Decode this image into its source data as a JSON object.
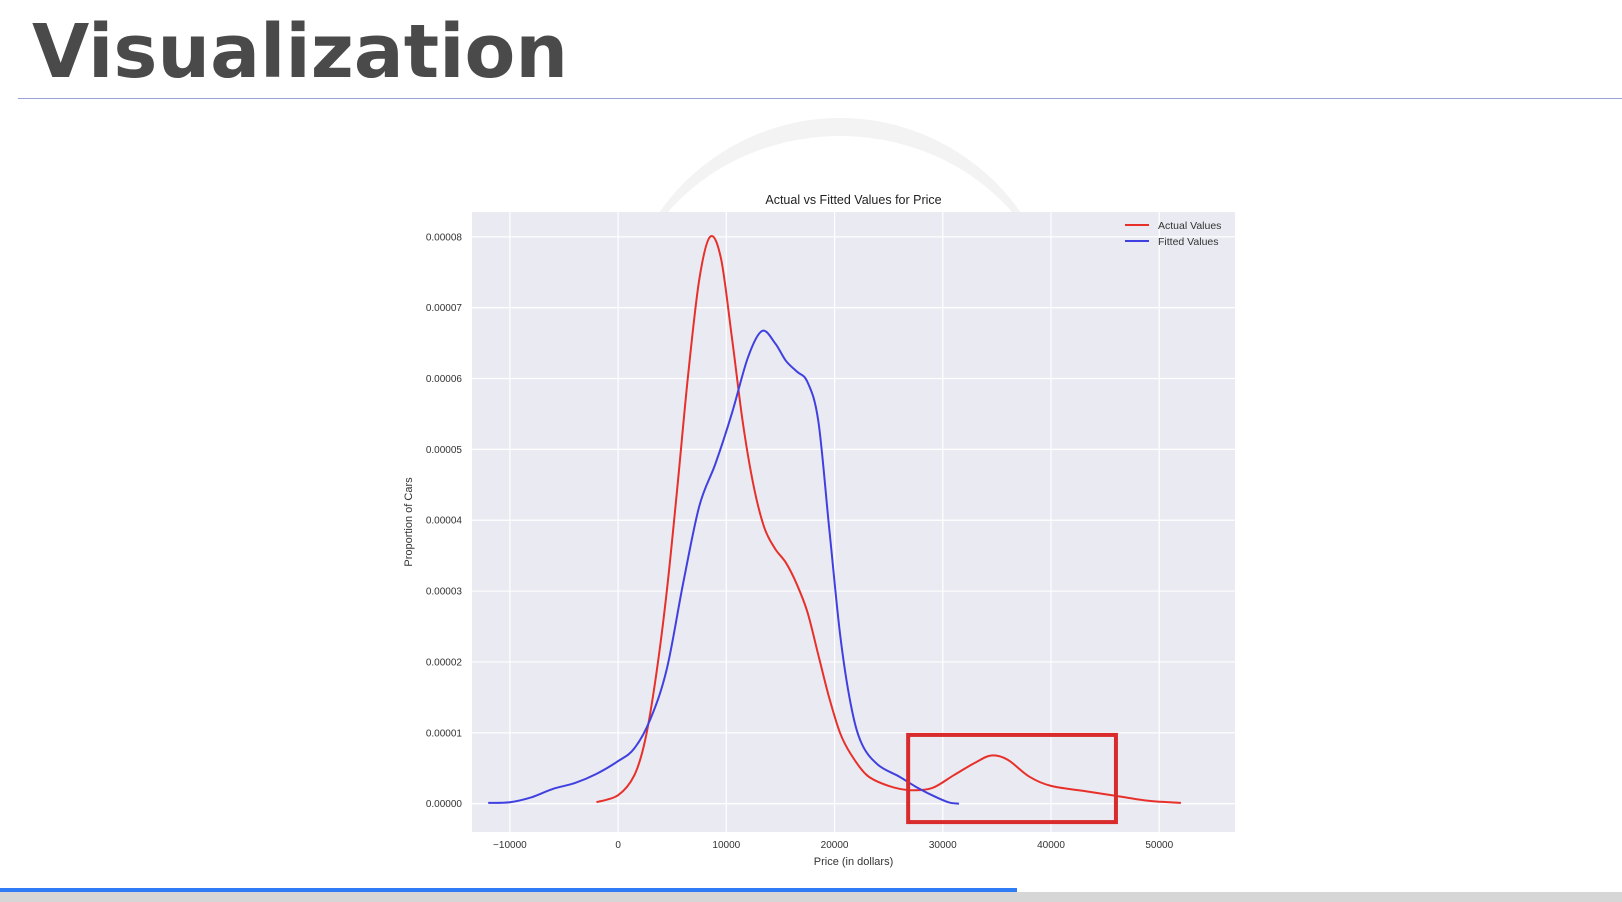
{
  "slide": {
    "title": "Visualization"
  },
  "progress": {
    "fraction": 0.627
  },
  "colors": {
    "actual": "#e8302a",
    "fitted": "#4040e0",
    "highlight": "#d92b2b",
    "plot_bg": "#eaeaf2"
  },
  "chart_data": {
    "type": "line",
    "title": "Actual vs Fitted Values for Price",
    "xlabel": "Price (in dollars)",
    "ylabel": "Proportion of Cars",
    "xlim": [
      -13500,
      57000
    ],
    "ylim": [
      -4e-06,
      8.35e-05
    ],
    "x_ticks": [
      {
        "value": -10000,
        "label": "−10000"
      },
      {
        "value": 0,
        "label": "0"
      },
      {
        "value": 10000,
        "label": "10000"
      },
      {
        "value": 20000,
        "label": "20000"
      },
      {
        "value": 30000,
        "label": "30000"
      },
      {
        "value": 40000,
        "label": "40000"
      },
      {
        "value": 50000,
        "label": "50000"
      }
    ],
    "y_ticks": [
      {
        "value": 0.0,
        "label": "0.00000"
      },
      {
        "value": 1e-05,
        "label": "0.00001"
      },
      {
        "value": 2e-05,
        "label": "0.00002"
      },
      {
        "value": 3e-05,
        "label": "0.00003"
      },
      {
        "value": 4e-05,
        "label": "0.00004"
      },
      {
        "value": 5e-05,
        "label": "0.00005"
      },
      {
        "value": 6e-05,
        "label": "0.00006"
      },
      {
        "value": 7e-05,
        "label": "0.00007"
      },
      {
        "value": 8e-05,
        "label": "0.00008"
      }
    ],
    "grid": true,
    "legend_position": "top-right",
    "series": [
      {
        "name": "Actual Values",
        "color": "#e8302a",
        "points": [
          [
            -2000,
            2e-07
          ],
          [
            0,
            1.2e-06
          ],
          [
            1500,
            4e-06
          ],
          [
            2500,
            9e-06
          ],
          [
            3500,
            1.8e-05
          ],
          [
            4500,
            3e-05
          ],
          [
            5500,
            4.5e-05
          ],
          [
            6500,
            6.1e-05
          ],
          [
            7500,
            7.4e-05
          ],
          [
            8500,
            8e-05
          ],
          [
            9500,
            7.7e-05
          ],
          [
            10500,
            6.6e-05
          ],
          [
            11500,
            5.4e-05
          ],
          [
            12500,
            4.5e-05
          ],
          [
            13500,
            3.9e-05
          ],
          [
            14500,
            3.6e-05
          ],
          [
            15500,
            3.4e-05
          ],
          [
            16500,
            3.1e-05
          ],
          [
            17500,
            2.7e-05
          ],
          [
            18500,
            2.1e-05
          ],
          [
            19500,
            1.5e-05
          ],
          [
            20500,
            1e-05
          ],
          [
            21500,
            7e-06
          ],
          [
            23000,
            4e-06
          ],
          [
            25000,
            2.5e-06
          ],
          [
            27000,
            1.9e-06
          ],
          [
            29000,
            2.2e-06
          ],
          [
            31000,
            4e-06
          ],
          [
            33000,
            5.8e-06
          ],
          [
            34500,
            6.8e-06
          ],
          [
            36000,
            6.2e-06
          ],
          [
            38000,
            3.8e-06
          ],
          [
            40000,
            2.5e-06
          ],
          [
            43000,
            1.8e-06
          ],
          [
            46000,
            1.1e-06
          ],
          [
            49000,
            4e-07
          ],
          [
            52000,
            1e-07
          ]
        ]
      },
      {
        "name": "Fitted Values",
        "color": "#4040e0",
        "points": [
          [
            -12000,
            1e-07
          ],
          [
            -10000,
            2e-07
          ],
          [
            -8000,
            9e-07
          ],
          [
            -6000,
            2.1e-06
          ],
          [
            -4000,
            2.9e-06
          ],
          [
            -2000,
            4.2e-06
          ],
          [
            0,
            6e-06
          ],
          [
            1500,
            7.8e-06
          ],
          [
            3000,
            1.2e-05
          ],
          [
            4500,
            1.9e-05
          ],
          [
            6000,
            3.1e-05
          ],
          [
            7500,
            4.2e-05
          ],
          [
            9000,
            4.8e-05
          ],
          [
            10500,
            5.5e-05
          ],
          [
            12000,
            6.3e-05
          ],
          [
            13300,
            6.67e-05
          ],
          [
            14500,
            6.5e-05
          ],
          [
            15500,
            6.25e-05
          ],
          [
            16500,
            6.1e-05
          ],
          [
            17500,
            5.95e-05
          ],
          [
            18500,
            5.4e-05
          ],
          [
            19500,
            3.9e-05
          ],
          [
            20500,
            2.4e-05
          ],
          [
            21500,
            1.4e-05
          ],
          [
            22500,
            8.5e-06
          ],
          [
            24000,
            5.5e-06
          ],
          [
            26000,
            3.8e-06
          ],
          [
            27500,
            2.4e-06
          ],
          [
            29000,
            1.2e-06
          ],
          [
            30500,
            2e-07
          ],
          [
            31500,
            0.0
          ]
        ]
      }
    ],
    "highlight_box": {
      "x0": 26800,
      "x1": 46000,
      "y0": -2.6e-06,
      "y1": 9.7e-06
    }
  }
}
